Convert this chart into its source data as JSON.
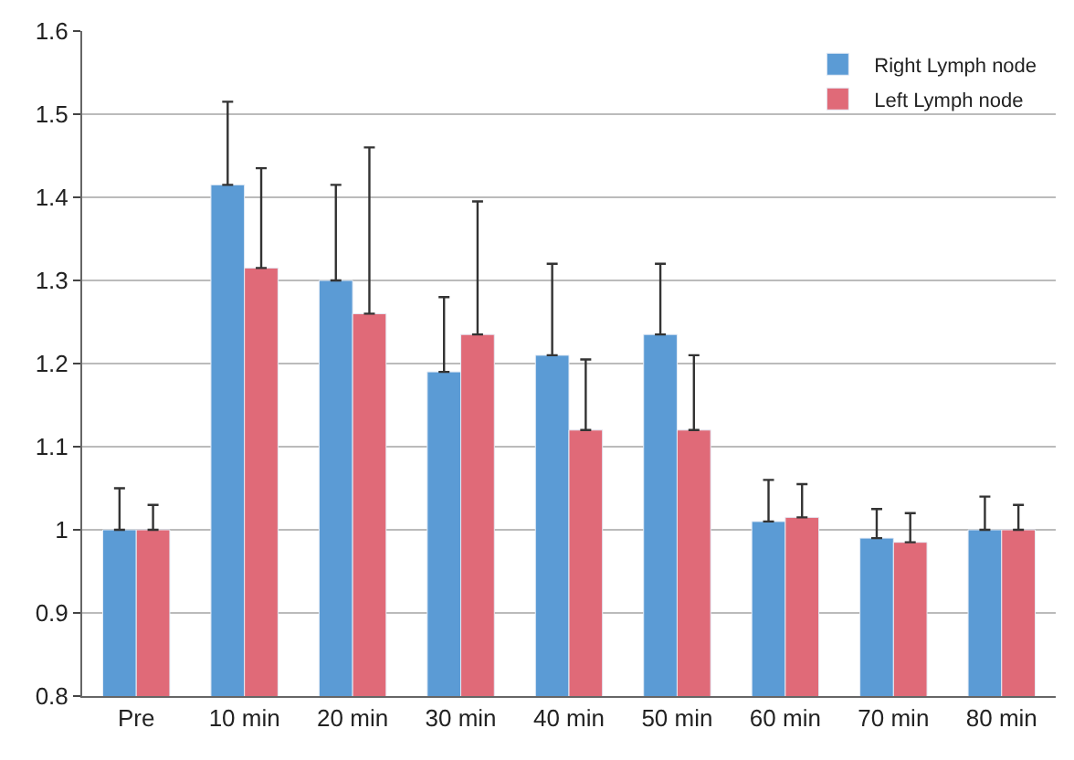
{
  "chart_data": {
    "type": "bar",
    "categories": [
      "Pre",
      "10 min",
      "20 min",
      "30 min",
      "40 min",
      "50 min",
      "60 min",
      "70 min",
      "80 min"
    ],
    "series": [
      {
        "name": "Right Lymph node",
        "color": "#5b9bd5",
        "values": [
          1.0,
          1.415,
          1.3,
          1.19,
          1.21,
          1.235,
          1.01,
          0.99,
          1.0
        ],
        "errors": [
          [
            1.0,
            1.05
          ],
          [
            1.415,
            1.515
          ],
          [
            1.3,
            1.415
          ],
          [
            1.19,
            1.28
          ],
          [
            1.21,
            1.32
          ],
          [
            1.235,
            1.32
          ],
          [
            1.01,
            1.06
          ],
          [
            0.99,
            1.025
          ],
          [
            1.0,
            1.04
          ]
        ]
      },
      {
        "name": "Left Lymph node",
        "color": "#e06a78",
        "values": [
          1.0,
          1.315,
          1.26,
          1.235,
          1.12,
          1.12,
          1.015,
          0.985,
          1.0
        ],
        "errors": [
          [
            1.0,
            1.03
          ],
          [
            1.315,
            1.435
          ],
          [
            1.26,
            1.46
          ],
          [
            1.235,
            1.395
          ],
          [
            1.12,
            1.205
          ],
          [
            1.12,
            1.21
          ],
          [
            1.015,
            1.055
          ],
          [
            0.985,
            1.02
          ],
          [
            1.0,
            1.03
          ]
        ]
      }
    ],
    "ylim": [
      0.8,
      1.6
    ],
    "yticks": [
      0.8,
      0.9,
      1,
      1.1,
      1.2,
      1.3,
      1.4,
      1.5,
      1.6
    ],
    "grid": "y",
    "legend": "top right"
  }
}
